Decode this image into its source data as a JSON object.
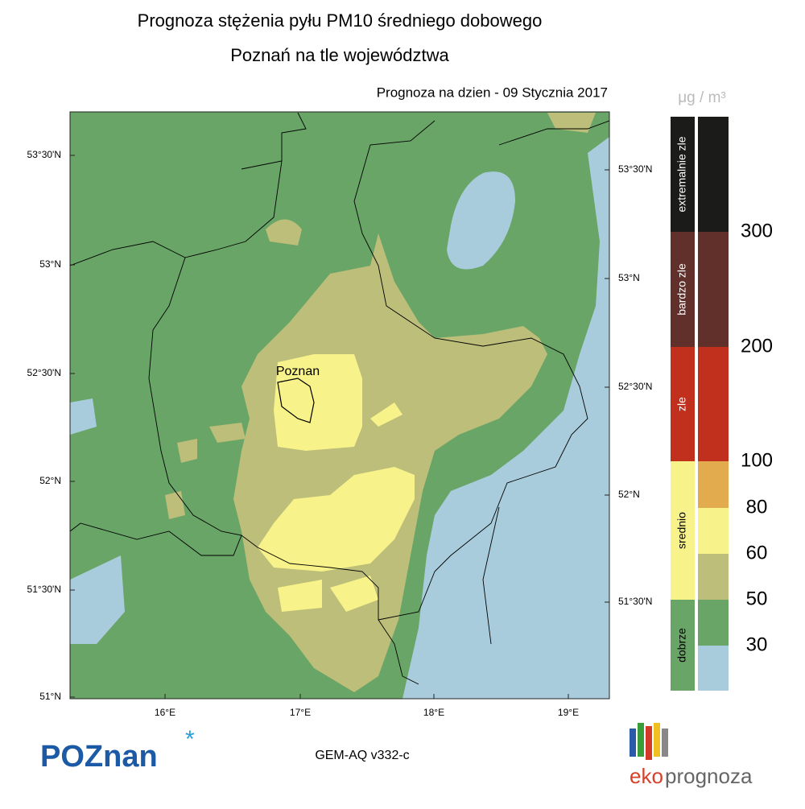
{
  "header": {
    "title": "Prognoza stężenia pyłu PM10 średniego dobowego",
    "subtitle": "Poznań na tle województwa",
    "forecast_date": "Prognoza na dzien -  09 Stycznia 2017"
  },
  "map": {
    "city_label": "Poznan",
    "lat_labels_left": [
      "53°30'N",
      "53°N",
      "52°30'N",
      "52°N",
      "51°30'N",
      "51°N"
    ],
    "lat_labels_right": [
      "53°30'N",
      "53°N",
      "52°30'N",
      "52°N",
      "51°30'N"
    ],
    "lon_labels": [
      "16°E",
      "17°E",
      "18°E",
      "19°E"
    ]
  },
  "legend": {
    "unit": "μg / m³",
    "categories": [
      {
        "label": "extremalnie zle",
        "color": "#1b1b19"
      },
      {
        "label": "bardzo zle",
        "color": "#62302b"
      },
      {
        "label": "zle",
        "color": "#c1301c"
      },
      {
        "label": "srednio",
        "color": "#f8f28a"
      },
      {
        "label": "dobrze",
        "color": "#68a566"
      }
    ],
    "scale_colors": [
      "#1b1b19",
      "#62302b",
      "#c1301c",
      "#e2ab4e",
      "#f8f28a",
      "#bcbe7a",
      "#68a566",
      "#a9ccdd"
    ],
    "thresholds": [
      "300",
      "200",
      "100",
      "80",
      "60",
      "50",
      "30"
    ]
  },
  "footer": {
    "logo_left": "POZnan",
    "model": "GEM-AQ v332-c",
    "logo_right_eko": "eko",
    "logo_right_prognoza": "prognoza"
  }
}
